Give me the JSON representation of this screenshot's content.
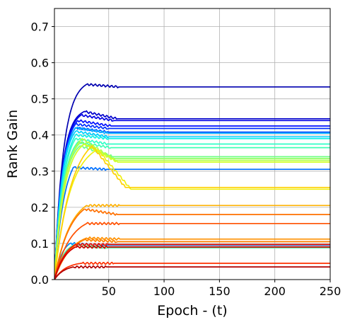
{
  "chart_data": {
    "type": "line",
    "title": "",
    "xlabel": "Epoch - (t)",
    "ylabel": "Rank Gain",
    "xlim": [
      1,
      250
    ],
    "ylim": [
      0,
      0.75
    ],
    "x_ticks": [
      50,
      100,
      150,
      200,
      250
    ],
    "y_ticks": [
      0.0,
      0.1,
      0.2,
      0.3,
      0.4,
      0.5,
      0.6,
      0.7
    ],
    "x_tick_labels": [
      "50",
      "100",
      "150",
      "200",
      "250"
    ],
    "y_tick_labels": [
      "0.0",
      "0.1",
      "0.2",
      "0.3",
      "0.4",
      "0.5",
      "0.6",
      "0.7"
    ],
    "grid": true,
    "legend": "none",
    "colormap": "jet",
    "series": [
      {
        "color": "#0000b0",
        "final": 0.533,
        "peak": 0.54,
        "peak_x": 30,
        "rise": 8
      },
      {
        "color": "#0000cc",
        "final": 0.445,
        "peak": 0.465,
        "peak_x": 28,
        "rise": 7
      },
      {
        "color": "#0000e6",
        "final": 0.44,
        "peak": 0.455,
        "peak_x": 25,
        "rise": 7
      },
      {
        "color": "#0010ff",
        "final": 0.425,
        "peak": 0.44,
        "peak_x": 22,
        "rise": 7
      },
      {
        "color": "#0030ff",
        "final": 0.418,
        "peak": 0.43,
        "peak_x": 20,
        "rise": 7
      },
      {
        "color": "#0050ff",
        "final": 0.408,
        "peak": 0.42,
        "peak_x": 20,
        "rise": 7
      },
      {
        "color": "#0070ff",
        "final": 0.305,
        "peak": 0.31,
        "peak_x": 18,
        "rise": 9
      },
      {
        "color": "#0090ff",
        "final": 0.095,
        "peak": 0.1,
        "peak_x": 15,
        "rise": 7
      },
      {
        "color": "#00b0ff",
        "final": 0.405,
        "peak": 0.42,
        "peak_x": 20,
        "rise": 7
      },
      {
        "color": "#00d0ff",
        "final": 0.395,
        "peak": 0.41,
        "peak_x": 20,
        "rise": 7
      },
      {
        "color": "#10f0e6",
        "final": 0.39,
        "peak": 0.4,
        "peak_x": 20,
        "rise": 8
      },
      {
        "color": "#30ffc6",
        "final": 0.375,
        "peak": 0.39,
        "peak_x": 20,
        "rise": 8
      },
      {
        "color": "#50ffa6",
        "final": 0.088,
        "peak": 0.095,
        "peak_x": 18,
        "rise": 8
      },
      {
        "color": "#40ffb6",
        "final": 0.365,
        "peak": 0.38,
        "peak_x": 22,
        "rise": 8
      },
      {
        "color": "#70ff86",
        "final": 0.34,
        "peak": 0.37,
        "peak_x": 24,
        "rise": 8
      },
      {
        "color": "#90ff66",
        "final": 0.335,
        "peak": 0.38,
        "peak_x": 25,
        "rise": 8
      },
      {
        "color": "#b0ff46",
        "final": 0.33,
        "peak": 0.39,
        "peak_x": 26,
        "rise": 9
      },
      {
        "color": "#d0ff26",
        "final": 0.325,
        "peak": 0.375,
        "peak_x": 28,
        "rise": 9
      },
      {
        "color": "#f0f010",
        "final": 0.25,
        "peak": 0.36,
        "peak_x": 40,
        "rise": 14
      },
      {
        "color": "#ffd000",
        "final": 0.255,
        "peak": 0.37,
        "peak_x": 35,
        "rise": 15
      },
      {
        "color": "#ffb000",
        "final": 0.205,
        "peak": 0.205,
        "peak_x": 30,
        "rise": 14
      },
      {
        "color": "#ff9000",
        "final": 0.112,
        "peak": 0.115,
        "peak_x": 30,
        "rise": 14
      },
      {
        "color": "#ff8000",
        "final": 0.105,
        "peak": 0.11,
        "peak_x": 28,
        "rise": 14
      },
      {
        "color": "#ff7000",
        "final": 0.18,
        "peak": 0.195,
        "peak_x": 28,
        "rise": 14
      },
      {
        "color": "#ff5000",
        "final": 0.155,
        "peak": 0.155,
        "peak_x": 30,
        "rise": 14
      },
      {
        "color": "#ff3000",
        "final": 0.045,
        "peak": 0.045,
        "peak_x": 25,
        "rise": 10
      },
      {
        "color": "#f01000",
        "final": 0.097,
        "peak": 0.097,
        "peak_x": 20,
        "rise": 10
      },
      {
        "color": "#d00000",
        "final": 0.09,
        "peak": 0.09,
        "peak_x": 20,
        "rise": 10
      },
      {
        "color": "#b00000",
        "final": 0.035,
        "peak": 0.035,
        "peak_x": 18,
        "rise": 9
      }
    ]
  }
}
